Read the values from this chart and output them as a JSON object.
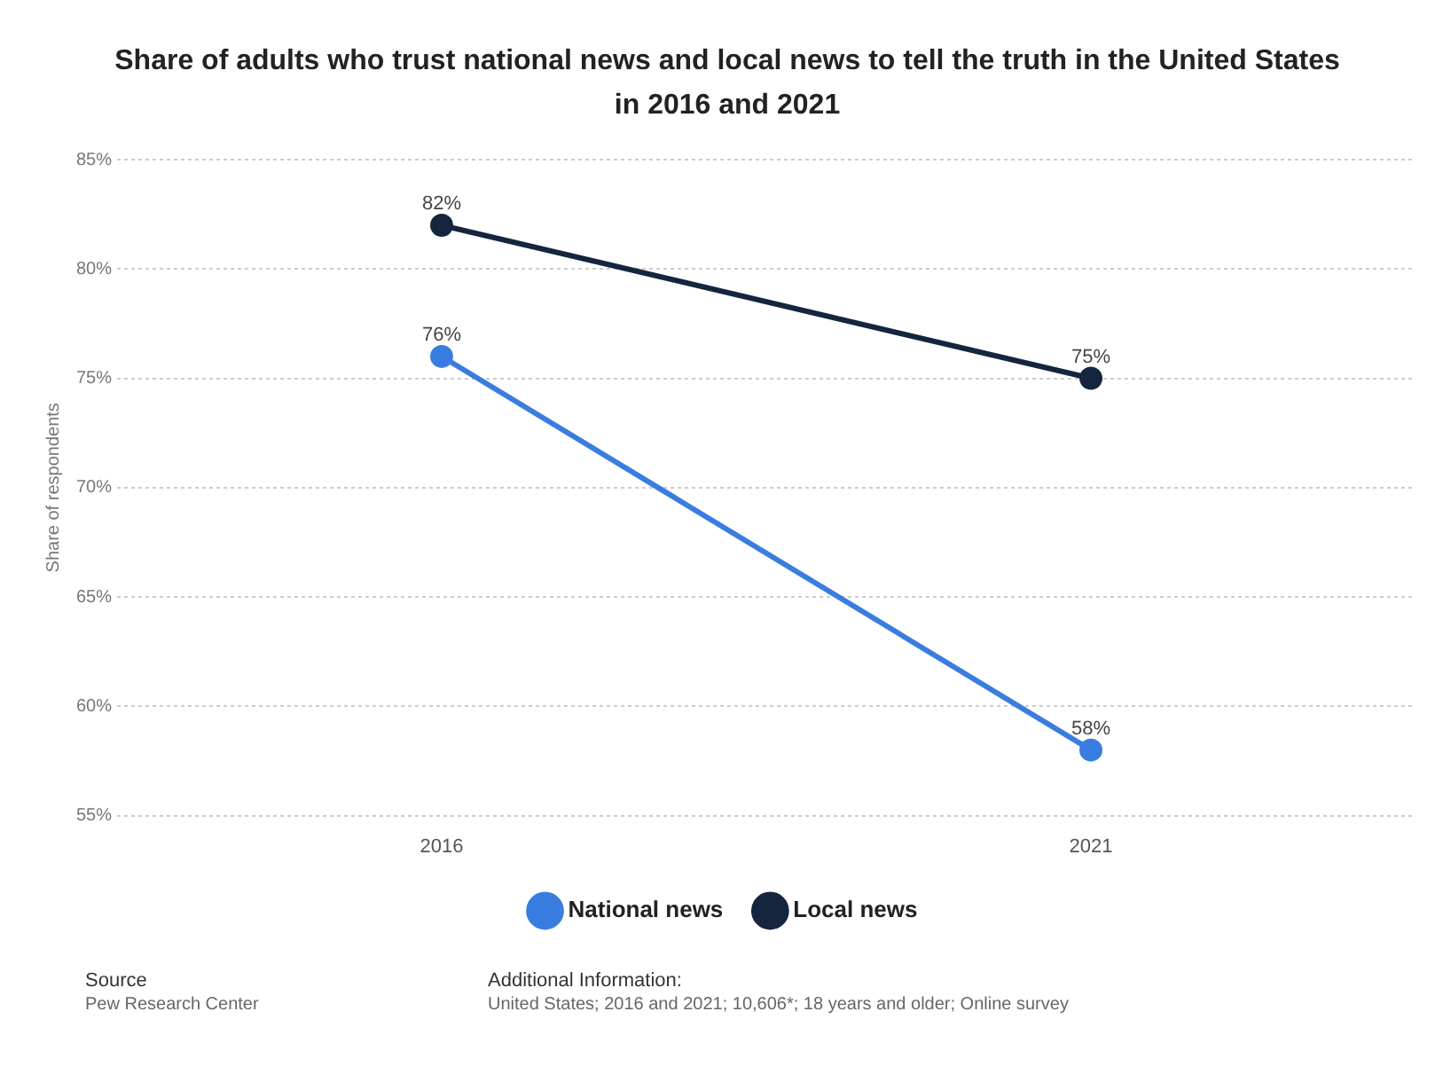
{
  "chart_data": {
    "type": "line",
    "title": "Share of adults who trust national news and local news to tell the truth in the United States in 2016 and 2021",
    "ylabel": "Share of respondents",
    "categories": [
      "2016",
      "2021"
    ],
    "series": [
      {
        "name": "National news",
        "color": "#3a7de0",
        "values": [
          76,
          58
        ],
        "value_labels": [
          "76%",
          "58%"
        ]
      },
      {
        "name": "Local news",
        "color": "#14253d",
        "values": [
          82,
          75
        ],
        "value_labels": [
          "82%",
          "75%"
        ]
      }
    ],
    "ylim": [
      55,
      85
    ],
    "yticks": [
      {
        "value": 55,
        "label": "55%"
      },
      {
        "value": 60,
        "label": "60%"
      },
      {
        "value": 65,
        "label": "65%"
      },
      {
        "value": 70,
        "label": "70%"
      },
      {
        "value": 75,
        "label": "75%"
      },
      {
        "value": 80,
        "label": "80%"
      },
      {
        "value": 85,
        "label": "85%"
      }
    ],
    "grid": "y",
    "legend": "bottom",
    "marker": "circle",
    "line_style": "solid",
    "annotations": [
      "Source",
      "Pew Research Center",
      "Additional Information:",
      "United States; 2016 and 2021; 10,606*; 18 years and older; Online survey"
    ]
  }
}
